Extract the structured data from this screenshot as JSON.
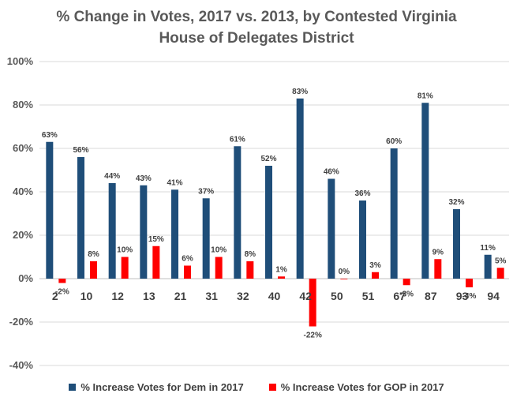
{
  "chart_data": {
    "type": "bar",
    "title_line1": "% Change in Votes, 2017 vs. 2013, by Contested Virginia",
    "title_line2": "House of Delegates District",
    "categories": [
      "2",
      "10",
      "12",
      "13",
      "21",
      "31",
      "32",
      "40",
      "42",
      "50",
      "51",
      "67",
      "87",
      "93",
      "94"
    ],
    "series": [
      {
        "name": "% Increase Votes for Dem in 2017",
        "color": "#1f4e79",
        "values": [
          63,
          56,
          44,
          43,
          41,
          37,
          61,
          52,
          83,
          46,
          36,
          60,
          81,
          32,
          11
        ]
      },
      {
        "name": "% Increase Votes for GOP in 2017",
        "color": "#ff0000",
        "values": [
          -2,
          8,
          10,
          15,
          6,
          10,
          8,
          1,
          -22,
          0,
          3,
          -3,
          9,
          -4,
          5
        ]
      }
    ],
    "ylim": [
      -40,
      100
    ],
    "yticks": [
      -40,
      -20,
      0,
      20,
      40,
      60,
      80,
      100
    ],
    "ytick_format": "percent",
    "gridlines": true,
    "legend_position": "bottom"
  }
}
